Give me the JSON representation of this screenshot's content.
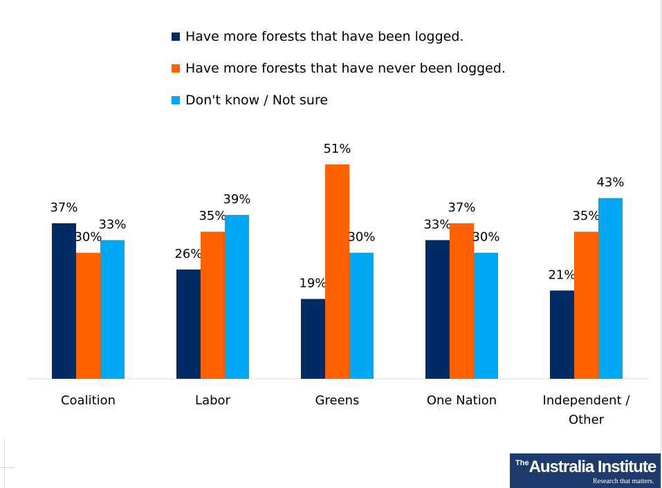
{
  "chart_data": {
    "type": "bar",
    "categories": [
      [
        "Coalition"
      ],
      [
        "Labor"
      ],
      [
        "Greens"
      ],
      [
        "One Nation"
      ],
      [
        "Independent /",
        "Other"
      ]
    ],
    "series": [
      {
        "name": "Have more forests that have been logged.",
        "color": "#002c66",
        "values": [
          37,
          26,
          19,
          33,
          21
        ],
        "labels": [
          "37%",
          "26%",
          "19%",
          "33%",
          "21%"
        ]
      },
      {
        "name": "Have more forests that have never been logged.",
        "color": "#ff6100",
        "values": [
          30,
          35,
          51,
          37,
          35
        ],
        "labels": [
          "30%",
          "35%",
          "51%",
          "37%",
          "35%"
        ]
      },
      {
        "name": "Don't know / Not sure",
        "color": "#00a8f4",
        "values": [
          33,
          39,
          30,
          30,
          43
        ],
        "labels": [
          "33%",
          "39%",
          "30%",
          "30%",
          "43%"
        ]
      }
    ],
    "ylim": [
      0,
      60
    ],
    "legend_position": "top"
  },
  "logo": {
    "superscript": "The",
    "name": "Australia Institute",
    "tagline": "Research that matters."
  }
}
